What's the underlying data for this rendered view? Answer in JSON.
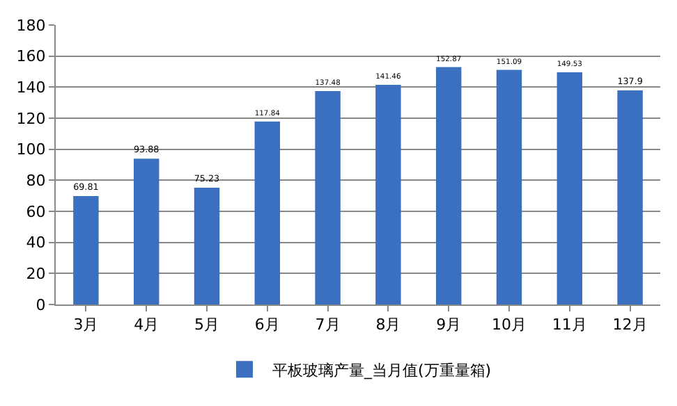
{
  "chart_data": {
    "type": "bar",
    "categories": [
      "3月",
      "4月",
      "5月",
      "6月",
      "7月",
      "8月",
      "9月",
      "10月",
      "11月",
      "12月"
    ],
    "series": [
      {
        "name": "平板玻璃产量_当月值(万重量箱)",
        "color": "#3b6fbf",
        "values": [
          69.81,
          93.88,
          75.23,
          117.84,
          137.48,
          141.46,
          152.87,
          151.09,
          149.53,
          137.9
        ]
      }
    ],
    "ylim": [
      0,
      180
    ],
    "yticks": [
      0,
      20,
      40,
      60,
      80,
      100,
      120,
      140,
      160,
      180
    ],
    "grid": "y",
    "legend": "bottom",
    "data_labels": true
  }
}
